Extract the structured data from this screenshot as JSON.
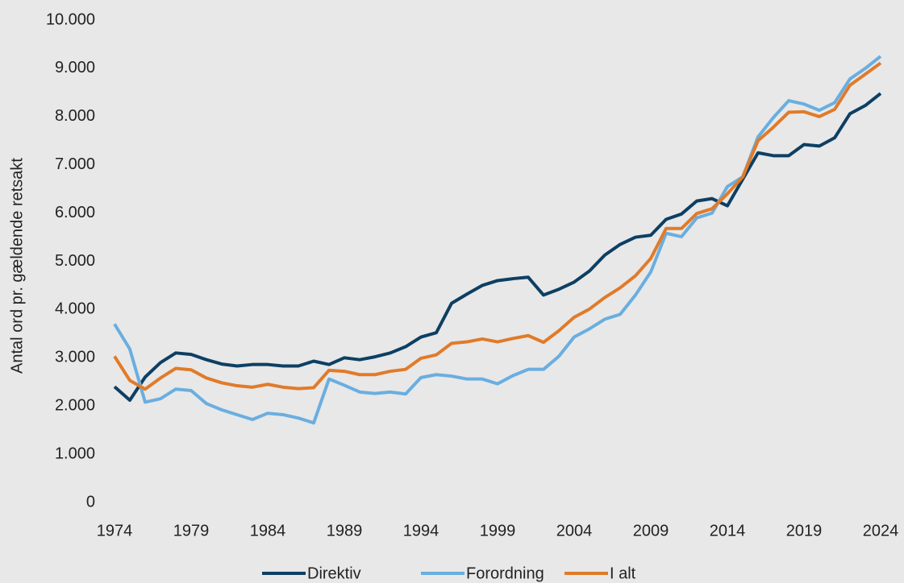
{
  "chart_data": {
    "type": "line",
    "y_label": "Antal ord pr. gældende retsakt",
    "x": [
      1974,
      1975,
      1976,
      1977,
      1978,
      1979,
      1980,
      1981,
      1982,
      1983,
      1984,
      1985,
      1986,
      1987,
      1988,
      1989,
      1990,
      1991,
      1992,
      1993,
      1994,
      1995,
      1996,
      1997,
      1998,
      1999,
      2000,
      2001,
      2002,
      2003,
      2004,
      2005,
      2006,
      2007,
      2008,
      2009,
      2010,
      2011,
      2012,
      2013,
      2014,
      2015,
      2016,
      2017,
      2018,
      2019,
      2020,
      2021,
      2022,
      2023,
      2024
    ],
    "series": [
      {
        "name": "Direktiv",
        "color": "#0d3f63",
        "values": [
          2400,
          2120,
          2600,
          2900,
          3100,
          3070,
          2960,
          2870,
          2830,
          2860,
          2860,
          2830,
          2830,
          2930,
          2860,
          3000,
          2960,
          3020,
          3100,
          3230,
          3430,
          3520,
          4130,
          4320,
          4500,
          4600,
          4640,
          4670,
          4300,
          4420,
          4570,
          4800,
          5130,
          5350,
          5500,
          5540,
          5870,
          5980,
          6250,
          6300,
          6150,
          6700,
          7250,
          7190,
          7190,
          7420,
          7390,
          7560,
          8060,
          8230,
          8480
        ]
      },
      {
        "name": "Forordning",
        "color": "#6aaee0",
        "values": [
          3700,
          3180,
          2080,
          2150,
          2350,
          2320,
          2050,
          1920,
          1820,
          1720,
          1850,
          1820,
          1750,
          1650,
          2560,
          2430,
          2290,
          2260,
          2290,
          2250,
          2590,
          2650,
          2620,
          2560,
          2560,
          2460,
          2630,
          2760,
          2760,
          3030,
          3430,
          3600,
          3800,
          3900,
          4300,
          4780,
          5580,
          5510,
          5900,
          6000,
          6550,
          6750,
          7580,
          7980,
          8330,
          8260,
          8130,
          8290,
          8780,
          9000,
          9250
        ]
      },
      {
        "name": "I alt",
        "color": "#e07b2a",
        "values": [
          3030,
          2530,
          2350,
          2580,
          2780,
          2750,
          2580,
          2480,
          2420,
          2390,
          2450,
          2390,
          2360,
          2380,
          2740,
          2720,
          2650,
          2650,
          2720,
          2760,
          2990,
          3060,
          3300,
          3330,
          3390,
          3330,
          3400,
          3460,
          3320,
          3560,
          3840,
          4010,
          4250,
          4450,
          4700,
          5060,
          5680,
          5680,
          5990,
          6090,
          6400,
          6750,
          7500,
          7780,
          8090,
          8100,
          8000,
          8150,
          8650,
          8880,
          9110
        ]
      }
    ],
    "xlim": [
      1974,
      2024
    ],
    "xticks": [
      1974,
      1979,
      1984,
      1989,
      1994,
      1999,
      2004,
      2009,
      2014,
      2019,
      2024
    ],
    "ylim": [
      0,
      10000
    ],
    "yticks": [
      0,
      {
        "value": 1000,
        "label": "1.000"
      },
      {
        "value": 2000,
        "label": "2.000"
      },
      {
        "value": 3000,
        "label": "3.000"
      },
      {
        "value": 4000,
        "label": "4.000"
      },
      {
        "value": 5000,
        "label": "5.000"
      },
      {
        "value": 6000,
        "label": "6.000"
      },
      {
        "value": 7000,
        "label": "7.000"
      },
      {
        "value": 8000,
        "label": "8.000"
      },
      {
        "value": 9000,
        "label": "9.000"
      },
      {
        "value": 10000,
        "label": "10.000"
      }
    ],
    "grid": false,
    "legend": "bottom"
  }
}
